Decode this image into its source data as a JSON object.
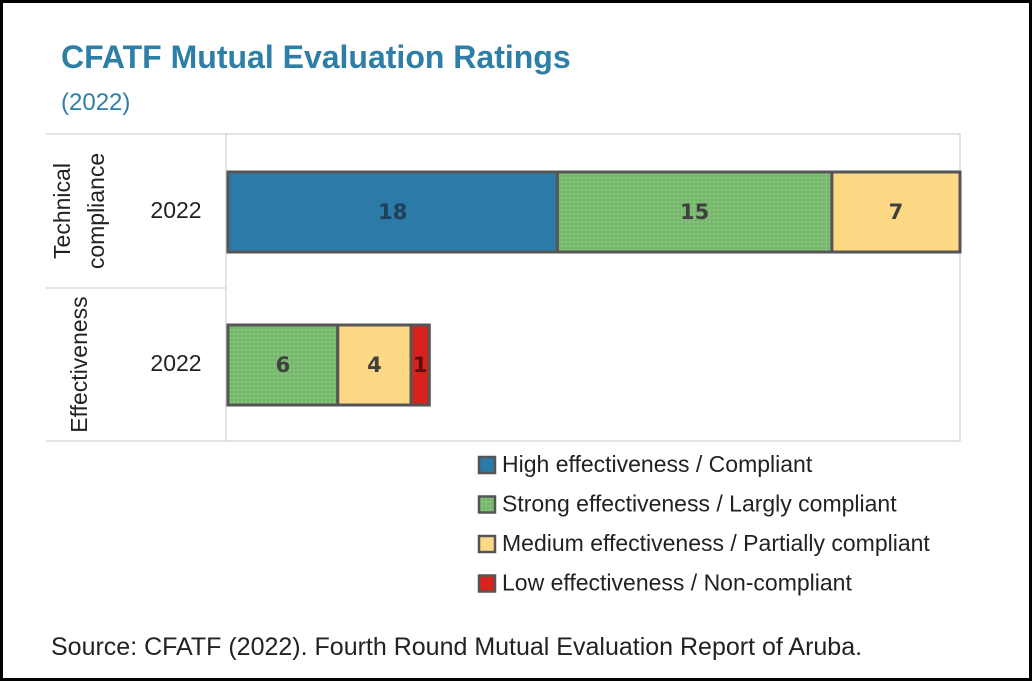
{
  "title": "CFATF Mutual Evaluation Ratings",
  "subtitle": "(2022)",
  "source": "Source: CFATF (2022). Fourth Round Mutual Evaluation Report of Aruba.",
  "colors": {
    "high": "#2b7aa8",
    "strong": "#78b96e",
    "medium": "#fdd985",
    "low": "#d6231d",
    "bar_border": "#555555",
    "text_dark": "#404040"
  },
  "chart_data": {
    "type": "bar",
    "orientation": "horizontal",
    "stacked": true,
    "groups": [
      {
        "group_label": "Technical compliance",
        "category": "2022",
        "values": [
          18,
          15,
          7,
          0
        ]
      },
      {
        "group_label": "Effectiveness",
        "category": "2022",
        "values": [
          0,
          6,
          4,
          1
        ]
      }
    ],
    "series": [
      {
        "name": "High effectiveness / Compliant",
        "color": "#2b7aa8"
      },
      {
        "name": "Strong effectiveness / Largly compliant",
        "color": "#78b96e"
      },
      {
        "name": "Medium effectiveness / Partially compliant",
        "color": "#fdd985"
      },
      {
        "name": "Low effectiveness / Non-compliant",
        "color": "#d6231d"
      }
    ],
    "legend_position": "bottom-right",
    "grid": false,
    "title": "CFATF Mutual Evaluation Ratings",
    "subtitle": "(2022)"
  }
}
